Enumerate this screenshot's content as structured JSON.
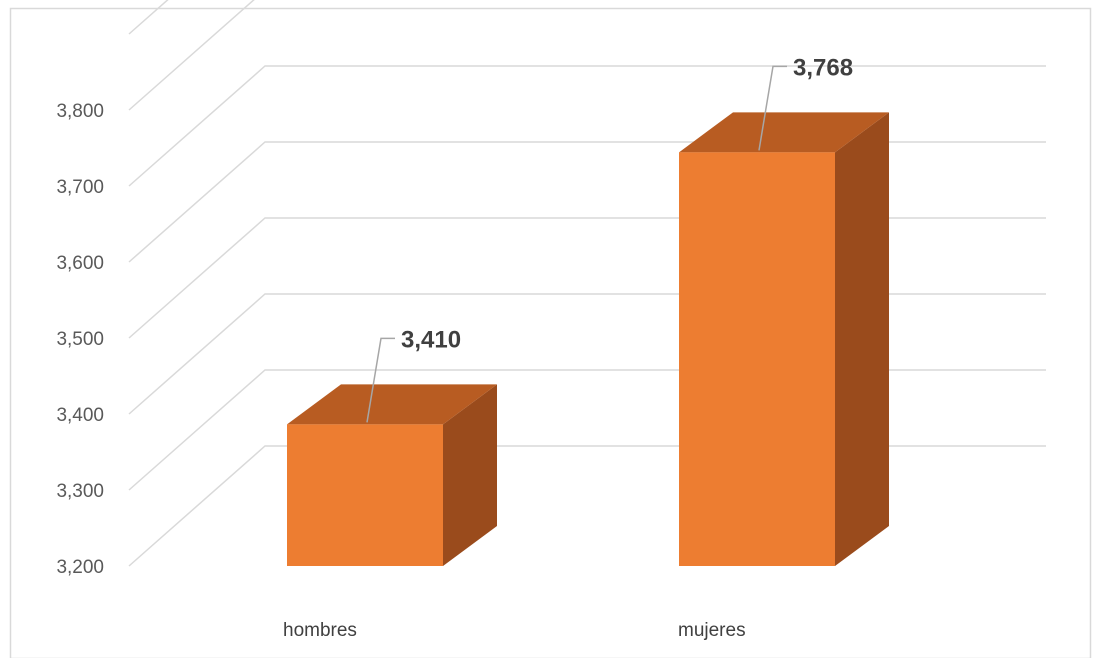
{
  "chart_data": {
    "type": "bar",
    "style": "3d-column",
    "categories": [
      "hombres",
      "mujeres"
    ],
    "series": [
      {
        "values": [
          3410,
          3768
        ]
      }
    ],
    "data_labels": [
      "3,410",
      "3,768"
    ],
    "y_ticks": [
      3200,
      3300,
      3400,
      3500,
      3600,
      3700,
      3800
    ],
    "y_tick_labels": [
      "3,200",
      "3,300",
      "3,400",
      "3,500",
      "3,600",
      "3,700",
      "3,800"
    ],
    "ylim": [
      3200,
      3900
    ],
    "grid": true,
    "legend": "none",
    "colors": {
      "bar_front": "#ED7D31",
      "bar_top": "#B85C22",
      "bar_side": "#9A4B1C",
      "gridline": "#D9D9D9",
      "leader_line": "#A6A6A6",
      "frame": "#D9D9D9"
    }
  }
}
